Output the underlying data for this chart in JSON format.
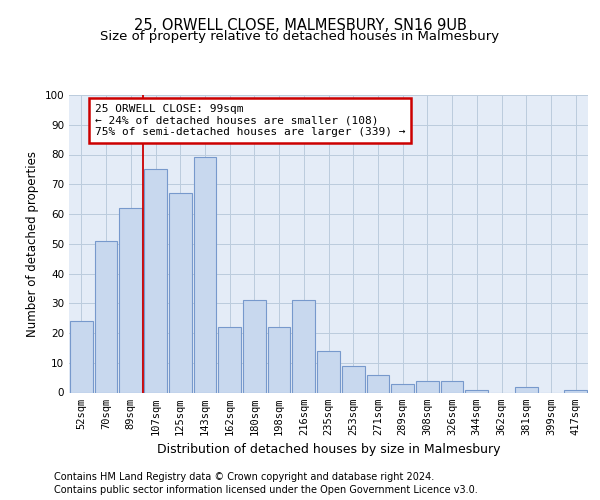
{
  "title1": "25, ORWELL CLOSE, MALMESBURY, SN16 9UB",
  "title2": "Size of property relative to detached houses in Malmesbury",
  "xlabel": "Distribution of detached houses by size in Malmesbury",
  "ylabel": "Number of detached properties",
  "categories": [
    "52sqm",
    "70sqm",
    "89sqm",
    "107sqm",
    "125sqm",
    "143sqm",
    "162sqm",
    "180sqm",
    "198sqm",
    "216sqm",
    "235sqm",
    "253sqm",
    "271sqm",
    "289sqm",
    "308sqm",
    "326sqm",
    "344sqm",
    "362sqm",
    "381sqm",
    "399sqm",
    "417sqm"
  ],
  "values": [
    24,
    51,
    62,
    75,
    67,
    79,
    22,
    31,
    22,
    31,
    14,
    9,
    6,
    3,
    4,
    4,
    1,
    0,
    2,
    0,
    1
  ],
  "bar_color": "#c8d8ee",
  "bar_edge_color": "#7799cc",
  "vline_color": "#cc0000",
  "annotation_text": "25 ORWELL CLOSE: 99sqm\n← 24% of detached houses are smaller (108)\n75% of semi-detached houses are larger (339) →",
  "annotation_box_color": "#ffffff",
  "annotation_box_edge": "#cc0000",
  "ylim": [
    0,
    100
  ],
  "yticks": [
    0,
    10,
    20,
    30,
    40,
    50,
    60,
    70,
    80,
    90,
    100
  ],
  "grid_color": "#bbccdd",
  "bg_color": "#e4ecf7",
  "footer1": "Contains HM Land Registry data © Crown copyright and database right 2024.",
  "footer2": "Contains public sector information licensed under the Open Government Licence v3.0.",
  "title_fontsize": 10.5,
  "subtitle_fontsize": 9.5,
  "ylabel_fontsize": 8.5,
  "xlabel_fontsize": 9,
  "tick_fontsize": 7.5,
  "annot_fontsize": 8,
  "footer_fontsize": 7
}
